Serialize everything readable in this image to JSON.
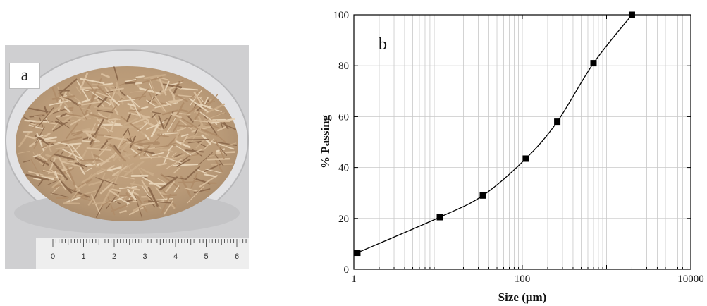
{
  "panels": {
    "a_label": "a",
    "b_label": "b"
  },
  "chart_data": {
    "type": "line",
    "xlabel": "Size (μm)",
    "ylabel": "% Passing",
    "xscale": "log",
    "xlim": [
      1,
      10000
    ],
    "ylim": [
      0,
      100
    ],
    "xticks": [
      1,
      100,
      10000
    ],
    "xtick_labels": [
      "1",
      "100",
      "10000"
    ],
    "yticks": [
      0,
      20,
      40,
      60,
      80,
      100
    ],
    "ytick_labels": [
      "0",
      "20",
      "40",
      "60",
      "80",
      "100"
    ],
    "grid": true,
    "x": [
      1.1,
      10.5,
      34,
      110,
      260,
      700,
      2000
    ],
    "y": [
      6.5,
      20.5,
      29,
      43.5,
      58,
      81,
      100
    ],
    "marker": "square",
    "line_color": "#000000"
  },
  "photo": {
    "ruler_numbers": [
      "0",
      "1",
      "2",
      "3",
      "4",
      "5",
      "6"
    ],
    "colors": {
      "background": "#cfcfd1",
      "straw": "#c9ab88",
      "straw_light": "#e6d2b6",
      "straw_dark": "#8d6b4e",
      "ruler": "#eeeeee"
    }
  }
}
